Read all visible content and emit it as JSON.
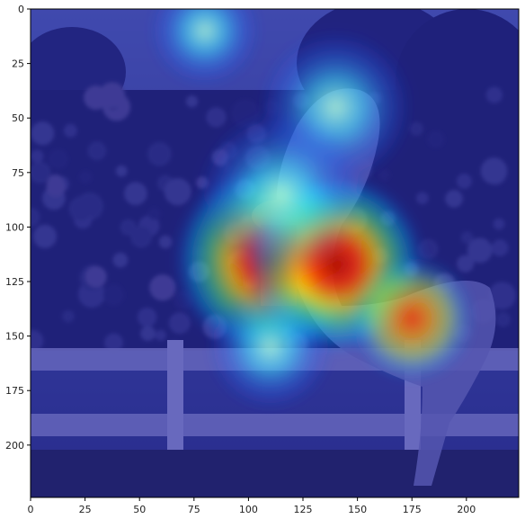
{
  "figure": {
    "description_type": "heatmap-overlay-on-photo",
    "colormap": "jet",
    "overlay_alpha": 0.5
  },
  "axes": {
    "x": {
      "ticks": [
        0,
        25,
        50,
        75,
        100,
        125,
        150,
        175,
        200
      ],
      "labels": [
        "0",
        "25",
        "50",
        "75",
        "100",
        "125",
        "150",
        "175",
        "200"
      ],
      "range": [
        0,
        224
      ]
    },
    "y": {
      "ticks": [
        0,
        25,
        50,
        75,
        100,
        125,
        150,
        175,
        200
      ],
      "labels": [
        "0",
        "25",
        "50",
        "75",
        "100",
        "125",
        "150",
        "175",
        "200"
      ],
      "range": [
        0,
        224
      ]
    }
  },
  "photo": {
    "scene": "rodeo",
    "colors": {
      "sky": "#6a7fb0",
      "crowd_dark": "#20253a",
      "crowd_mid": "#3b3f5c",
      "fence": "#c9c9d9",
      "ground": "#2a2e22",
      "horse": "#b8b8c8"
    }
  },
  "heatmap": {
    "base_color": "#1a1aa6",
    "hotspots": [
      {
        "x": 110,
        "y": 115,
        "intensity": 1.0,
        "spread": 28
      },
      {
        "x": 140,
        "y": 117,
        "intensity": 0.95,
        "spread": 26
      },
      {
        "x": 175,
        "y": 142,
        "intensity": 0.7,
        "spread": 18
      },
      {
        "x": 140,
        "y": 45,
        "intensity": 0.45,
        "spread": 22
      },
      {
        "x": 80,
        "y": 10,
        "intensity": 0.4,
        "spread": 16
      },
      {
        "x": 110,
        "y": 155,
        "intensity": 0.4,
        "spread": 18
      },
      {
        "x": 115,
        "y": 85,
        "intensity": 0.35,
        "spread": 24
      }
    ]
  }
}
